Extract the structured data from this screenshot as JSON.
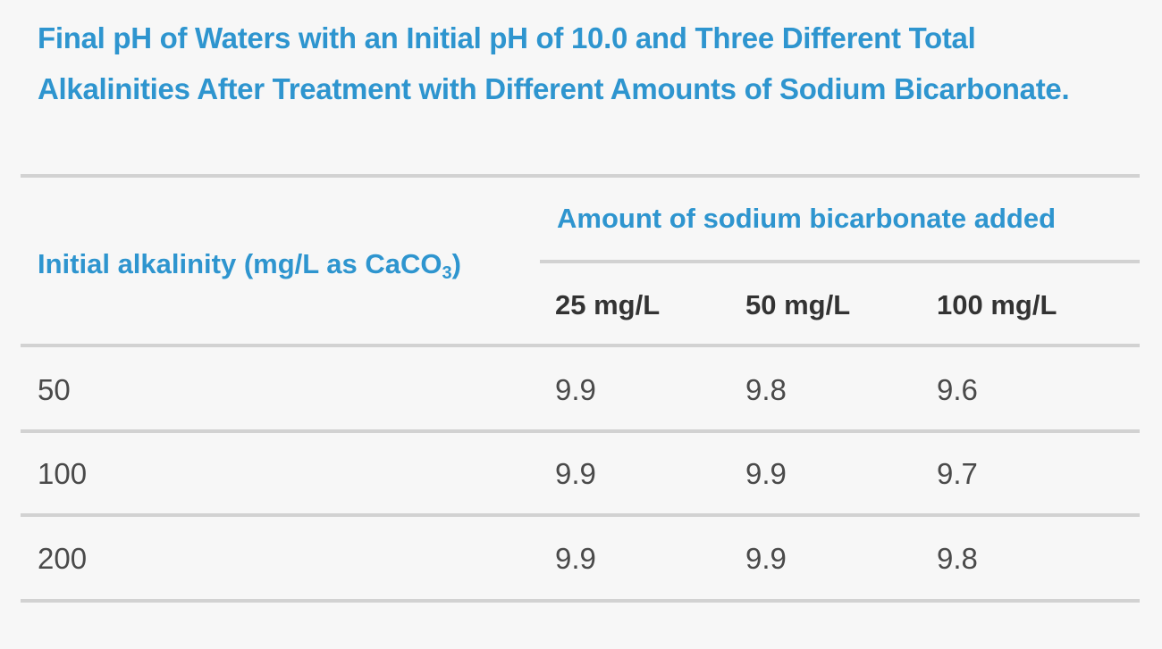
{
  "title": "Final pH of Waters with an Initial pH of 10.0 and Three Different Total Alkalinities After Treatment with Different Amounts of Sodium Bicarbonate.",
  "table": {
    "row_header": {
      "text": "Initial alkalinity (mg/L as CaCO",
      "subscript": "3",
      "suffix": ")"
    },
    "group_header": "Amount of sodium bicarbonate added",
    "columns": [
      "25 mg/L",
      "50 mg/L",
      "100 mg/L"
    ],
    "rows": [
      {
        "alkalinity": "50",
        "values": [
          "9.9",
          "9.8",
          "9.6"
        ]
      },
      {
        "alkalinity": "100",
        "values": [
          "9.9",
          "9.9",
          "9.7"
        ]
      },
      {
        "alkalinity": "200",
        "values": [
          "9.9",
          "9.9",
          "9.8"
        ]
      }
    ]
  },
  "colors": {
    "accent": "#2e95cf",
    "header_text": "#333333",
    "body_text": "#4a4a4a",
    "rule": "#d2d2d2",
    "background": "#f7f7f7"
  }
}
